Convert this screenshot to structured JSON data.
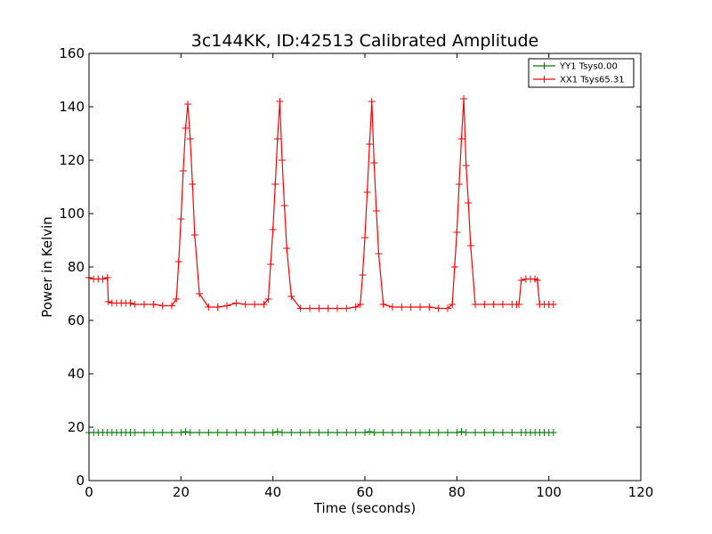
{
  "chart_data": {
    "type": "line",
    "title": "3c144KK, ID:42513 Calibrated Amplitude",
    "xlabel": "Time (seconds)",
    "ylabel": "Power in Kelvin",
    "xlim": [
      0,
      120
    ],
    "ylim": [
      0,
      160
    ],
    "x_ticks": [
      "0",
      "20",
      "40",
      "60",
      "80",
      "100",
      "120"
    ],
    "y_ticks": [
      "0",
      "20",
      "40",
      "60",
      "80",
      "100",
      "120",
      "140",
      "160"
    ],
    "grid": false,
    "legend_position": "top-right",
    "marker": "+",
    "series": [
      {
        "name": "YY1 Tsys0.00",
        "color": "#008000",
        "x": [
          0,
          1,
          2,
          3,
          4,
          5,
          6,
          7,
          8,
          9,
          10,
          12,
          14,
          16,
          18,
          20,
          21,
          22,
          24,
          26,
          28,
          30,
          32,
          34,
          36,
          38,
          40,
          41,
          42,
          44,
          46,
          48,
          50,
          52,
          54,
          56,
          58,
          60,
          61,
          62,
          64,
          66,
          68,
          70,
          72,
          74,
          76,
          78,
          80,
          81,
          82,
          84,
          86,
          88,
          90,
          92,
          94,
          95,
          96,
          97,
          98,
          99,
          100,
          101
        ],
        "y": [
          18,
          18,
          18,
          18,
          18,
          18,
          18,
          18,
          18,
          18,
          18,
          18,
          18,
          18,
          18,
          18,
          18.3,
          18,
          18,
          18,
          18,
          18,
          18,
          18,
          18,
          18,
          18,
          18.3,
          18,
          18,
          18,
          18,
          18,
          18,
          18,
          18,
          18,
          18,
          18.3,
          18,
          18,
          18,
          18,
          18,
          18,
          18,
          18,
          18,
          18,
          18.3,
          18,
          18,
          18,
          18,
          18,
          18,
          18,
          18,
          18,
          18,
          18,
          18,
          18,
          18
        ]
      },
      {
        "name": "XX1 Tsys65.31",
        "color": "#ff0000",
        "x": [
          0,
          1,
          2,
          3,
          4,
          4.2,
          5,
          6,
          7,
          8,
          9,
          10,
          12,
          14,
          16,
          18,
          19,
          19.5,
          20,
          20.5,
          21,
          21.5,
          22,
          22.5,
          23,
          24,
          26,
          28,
          30,
          32,
          34,
          36,
          38,
          39,
          39.5,
          40,
          40.5,
          41,
          41.5,
          42,
          42.5,
          43,
          44,
          46,
          48,
          50,
          52,
          54,
          56,
          58,
          59,
          59.5,
          60,
          60.5,
          61,
          61.5,
          62,
          62.5,
          63,
          64,
          66,
          68,
          70,
          72,
          74,
          76,
          78,
          79,
          79.5,
          80,
          80.5,
          81,
          81.5,
          82,
          82.5,
          83,
          84,
          86,
          88,
          90,
          92,
          93,
          93.5,
          94,
          95,
          96,
          97,
          97.5,
          98,
          99,
          100,
          101
        ],
        "y": [
          76,
          75.5,
          75.5,
          75.5,
          76,
          67,
          66.5,
          66.5,
          66.5,
          66.5,
          66.5,
          66,
          66,
          66,
          65.5,
          65.5,
          68,
          82,
          98,
          116,
          132,
          141,
          128,
          111,
          92,
          70,
          65,
          65,
          65.5,
          66.5,
          66,
          66,
          66,
          68,
          81,
          94,
          111,
          128,
          142,
          120,
          103,
          87,
          69,
          64.5,
          64.5,
          64.5,
          64.5,
          64.5,
          64.5,
          65,
          66,
          77,
          91,
          108,
          126,
          142,
          119,
          101,
          85,
          66,
          65,
          65,
          65,
          65,
          65,
          64.5,
          64.5,
          66,
          80,
          93,
          111,
          128,
          143,
          118,
          104,
          88,
          66,
          66,
          66,
          66,
          66,
          66,
          66,
          75,
          75.5,
          75.5,
          75.5,
          75,
          66,
          66,
          66,
          66
        ]
      }
    ]
  }
}
